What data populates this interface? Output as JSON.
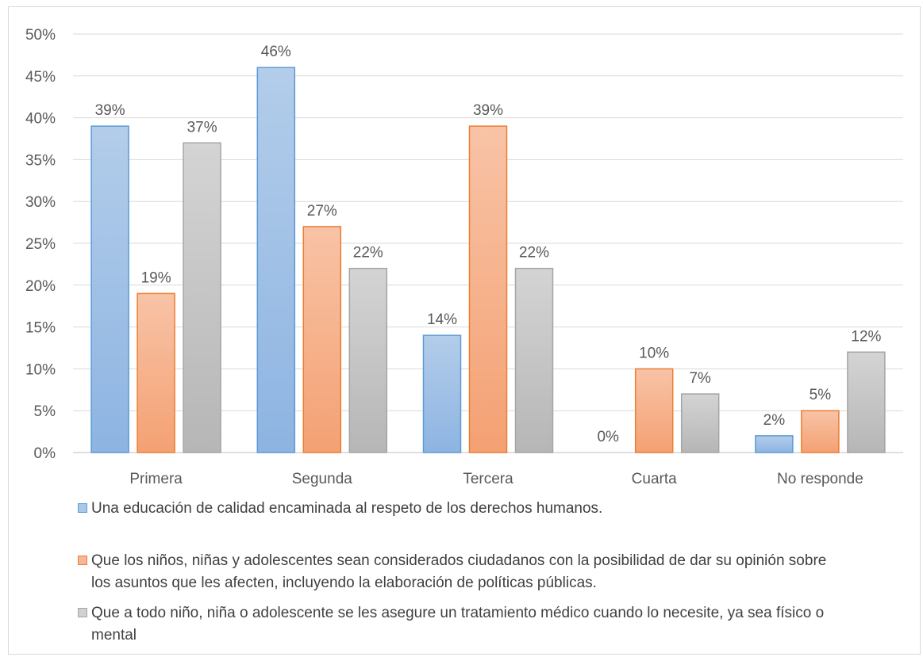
{
  "chart_data": {
    "type": "bar",
    "categories": [
      "Primera",
      "Segunda",
      "Tercera",
      "Cuarta",
      "No responde"
    ],
    "series": [
      {
        "name": "Una educación de calidad encaminada al respeto de los derechos humanos.",
        "values": [
          39,
          46,
          14,
          0,
          2
        ],
        "value_labels": [
          "39%",
          "46%",
          "14%",
          "0%",
          "2%"
        ],
        "color": "#5b9bd5"
      },
      {
        "name": "Que los niños, niñas y adolescentes sean considerados ciudadanos con la posibilidad de dar su opinión sobre los asuntos que les afecten, incluyendo la elaboración de políticas públicas.",
        "values": [
          19,
          27,
          39,
          10,
          5
        ],
        "value_labels": [
          "19%",
          "27%",
          "39%",
          "10%",
          "5%"
        ],
        "color": "#ed7d31"
      },
      {
        "name": "Que a todo niño, niña o adolescente se les asegure un tratamiento médico cuando lo necesite, ya sea físico o mental",
        "values": [
          37,
          22,
          22,
          7,
          12
        ],
        "value_labels": [
          "37%",
          "22%",
          "22%",
          "7%",
          "12%"
        ],
        "color": "#a5a5a5"
      }
    ],
    "y_ticks": [
      "0%",
      "5%",
      "10%",
      "15%",
      "20%",
      "25%",
      "30%",
      "35%",
      "40%",
      "45%",
      "50%"
    ],
    "ylim": [
      0,
      50
    ],
    "grid": true,
    "legend_position": "bottom",
    "title": "",
    "xlabel": "",
    "ylabel": ""
  }
}
